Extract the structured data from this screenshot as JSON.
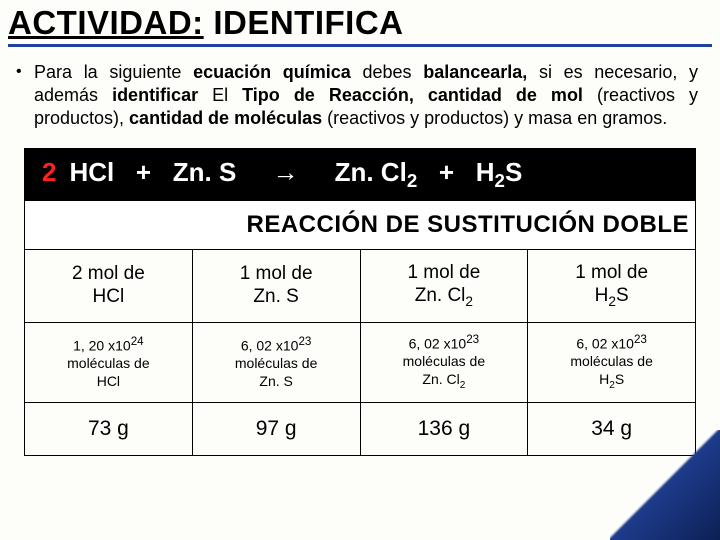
{
  "title_prefix": "ACTIVIDAD:",
  "title_rest": " IDENTIFICA",
  "paragraph_parts": {
    "p1": "Para la siguiente ",
    "p2": "ecuación química ",
    "p3": "debes ",
    "p4": "balancearla, ",
    "p5": "si es necesario, y además ",
    "p6": "identificar ",
    "p7": "El ",
    "p8": "Tipo de Reacción, cantidad de mol ",
    "p9": "(reactivos y productos), ",
    "p10": "cantidad de moléculas ",
    "p11": "(reactivos y productos) y masa en gramos."
  },
  "equation": {
    "coef": "2",
    "s1": "HCl",
    "plus1": "+",
    "s2": "Zn. S",
    "arrow": "→",
    "s3_pre": "Zn. Cl",
    "s3_sub": "2",
    "plus2": "+",
    "s4_pre": "H",
    "s4_sub": "2",
    "s4_post": "S"
  },
  "reaction_label": "REACCIÓN DE SUSTITUCIÓN DOBLE",
  "mols": {
    "c1a": "2 mol de",
    "c1b": "HCl",
    "c2a": "1 mol de",
    "c2b": "Zn. S",
    "c3a": "1 mol de",
    "c3b_pre": "Zn. Cl",
    "c3b_sub": "2",
    "c4a": "1 mol de",
    "c4b_pre": "H",
    "c4b_sub": "2",
    "c4b_post": "S"
  },
  "molecules": {
    "c1a": "1, 20 x10",
    "c1a_sup": "24",
    "c1b": "moléculas de",
    "c1c": "HCl",
    "c2a": "6, 02 x10",
    "c2a_sup": "23",
    "c2b": "moléculas de",
    "c2c": "Zn. S",
    "c3a": "6, 02 x10",
    "c3a_sup": "23",
    "c3b": "moléculas de",
    "c3c_pre": "Zn. Cl",
    "c3c_sub": "2",
    "c4a": "6, 02 x10",
    "c4a_sup": "23",
    "c4b": "moléculas de",
    "c4c_pre": "H",
    "c4c_sub": "2",
    "c4c_post": "S"
  },
  "mass": {
    "c1": "73 g",
    "c2": "97 g",
    "c3": "136 g",
    "c4": "34 g"
  }
}
